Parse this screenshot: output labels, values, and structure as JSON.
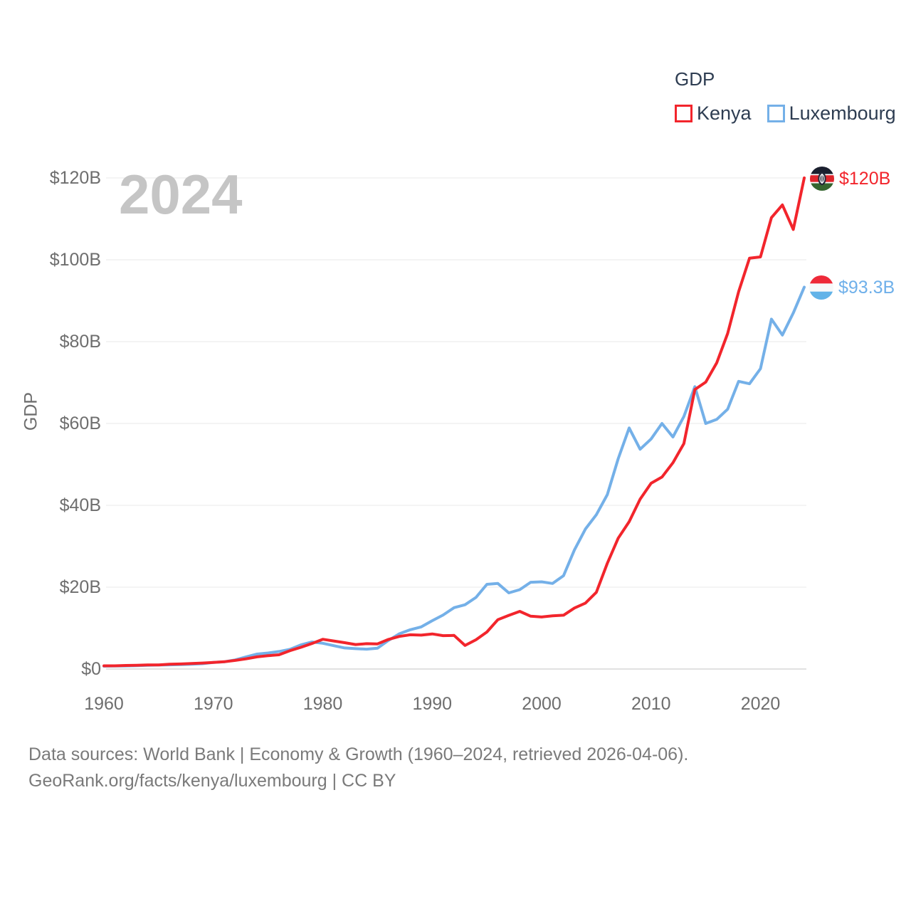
{
  "legend": {
    "title": "GDP",
    "items": [
      {
        "label": "Kenya",
        "color": "#f2252c"
      },
      {
        "label": "Luxembourg",
        "color": "#74b0e8"
      }
    ]
  },
  "watermark": "2024",
  "y_axis_label": "GDP",
  "end_labels": [
    {
      "country": "Kenya",
      "text": "$120B",
      "color": "#f2252c"
    },
    {
      "country": "Luxembourg",
      "text": "$93.3B",
      "color": "#6fb0ea"
    }
  ],
  "caption": {
    "line1": "Data sources: World Bank | Economy & Growth (1960–2024, retrieved 2026-04-06).",
    "line2": "GeoRank.org/facts/kenya/luxembourg | CC BY"
  },
  "chart_data": {
    "type": "line",
    "title": "GDP",
    "ylabel": "GDP",
    "xlabel": "",
    "ylim": [
      0,
      120
    ],
    "xlim": [
      1960,
      2024
    ],
    "grid": "horizontal",
    "legend_position": "top-right",
    "y_ticks": [
      {
        "label": "$0",
        "value": 0
      },
      {
        "label": "$20B",
        "value": 20
      },
      {
        "label": "$40B",
        "value": 40
      },
      {
        "label": "$60B",
        "value": 60
      },
      {
        "label": "$80B",
        "value": 80
      },
      {
        "label": "$100B",
        "value": 100
      },
      {
        "label": "$120B",
        "value": 120
      }
    ],
    "x_ticks": [
      {
        "label": "1960",
        "value": 1960
      },
      {
        "label": "1970",
        "value": 1970
      },
      {
        "label": "1980",
        "value": 1980
      },
      {
        "label": "1990",
        "value": 1990
      },
      {
        "label": "2000",
        "value": 2000
      },
      {
        "label": "2010",
        "value": 2010
      },
      {
        "label": "2020",
        "value": 2020
      }
    ],
    "x": [
      1960,
      1961,
      1962,
      1963,
      1964,
      1965,
      1966,
      1967,
      1968,
      1969,
      1970,
      1971,
      1972,
      1973,
      1974,
      1975,
      1976,
      1977,
      1978,
      1979,
      1980,
      1981,
      1982,
      1983,
      1984,
      1985,
      1986,
      1987,
      1988,
      1989,
      1990,
      1991,
      1992,
      1993,
      1994,
      1995,
      1996,
      1997,
      1998,
      1999,
      2000,
      2001,
      2002,
      2003,
      2004,
      2005,
      2006,
      2007,
      2008,
      2009,
      2010,
      2011,
      2012,
      2013,
      2014,
      2015,
      2016,
      2017,
      2018,
      2019,
      2020,
      2021,
      2022,
      2023,
      2024
    ],
    "series": [
      {
        "name": "Kenya",
        "color": "#f2252c",
        "end_value_label": "$120B",
        "values": [
          0.79,
          0.79,
          0.87,
          0.93,
          1.0,
          1.0,
          1.16,
          1.23,
          1.35,
          1.46,
          1.6,
          1.78,
          2.11,
          2.5,
          2.97,
          3.26,
          3.47,
          4.49,
          5.3,
          6.23,
          7.27,
          6.85,
          6.43,
          5.98,
          6.19,
          6.14,
          7.24,
          7.97,
          8.36,
          8.28,
          8.57,
          8.15,
          8.21,
          5.75,
          7.15,
          9.05,
          12.05,
          13.12,
          14.09,
          12.9,
          12.71,
          12.99,
          13.15,
          14.9,
          16.1,
          18.74,
          25.83,
          31.96,
          36.0,
          41.5,
          45.4,
          46.9,
          50.4,
          55.1,
          68.3,
          70.1,
          74.8,
          82.0,
          92.2,
          100.4,
          100.7,
          110.3,
          113.4,
          107.4,
          120.0
        ]
      },
      {
        "name": "Luxembourg",
        "color": "#74b0e8",
        "end_value_label": "$93.3B",
        "values": [
          0.7,
          0.74,
          0.77,
          0.82,
          0.92,
          0.97,
          1.03,
          1.07,
          1.16,
          1.31,
          1.6,
          1.75,
          2.22,
          2.97,
          3.65,
          3.92,
          4.27,
          4.82,
          5.9,
          6.6,
          6.3,
          5.7,
          5.15,
          4.98,
          4.85,
          5.1,
          7.0,
          8.6,
          9.6,
          10.3,
          11.8,
          13.2,
          15.0,
          15.7,
          17.5,
          20.7,
          20.9,
          18.6,
          19.4,
          21.2,
          21.3,
          20.9,
          22.8,
          29.1,
          34.2,
          37.7,
          42.6,
          51.4,
          58.9,
          53.7,
          56.2,
          60.0,
          56.7,
          61.7,
          69.0,
          60.0,
          61.0,
          63.5,
          70.3,
          69.7,
          73.4,
          85.5,
          81.6,
          87.0,
          93.3
        ]
      }
    ]
  }
}
